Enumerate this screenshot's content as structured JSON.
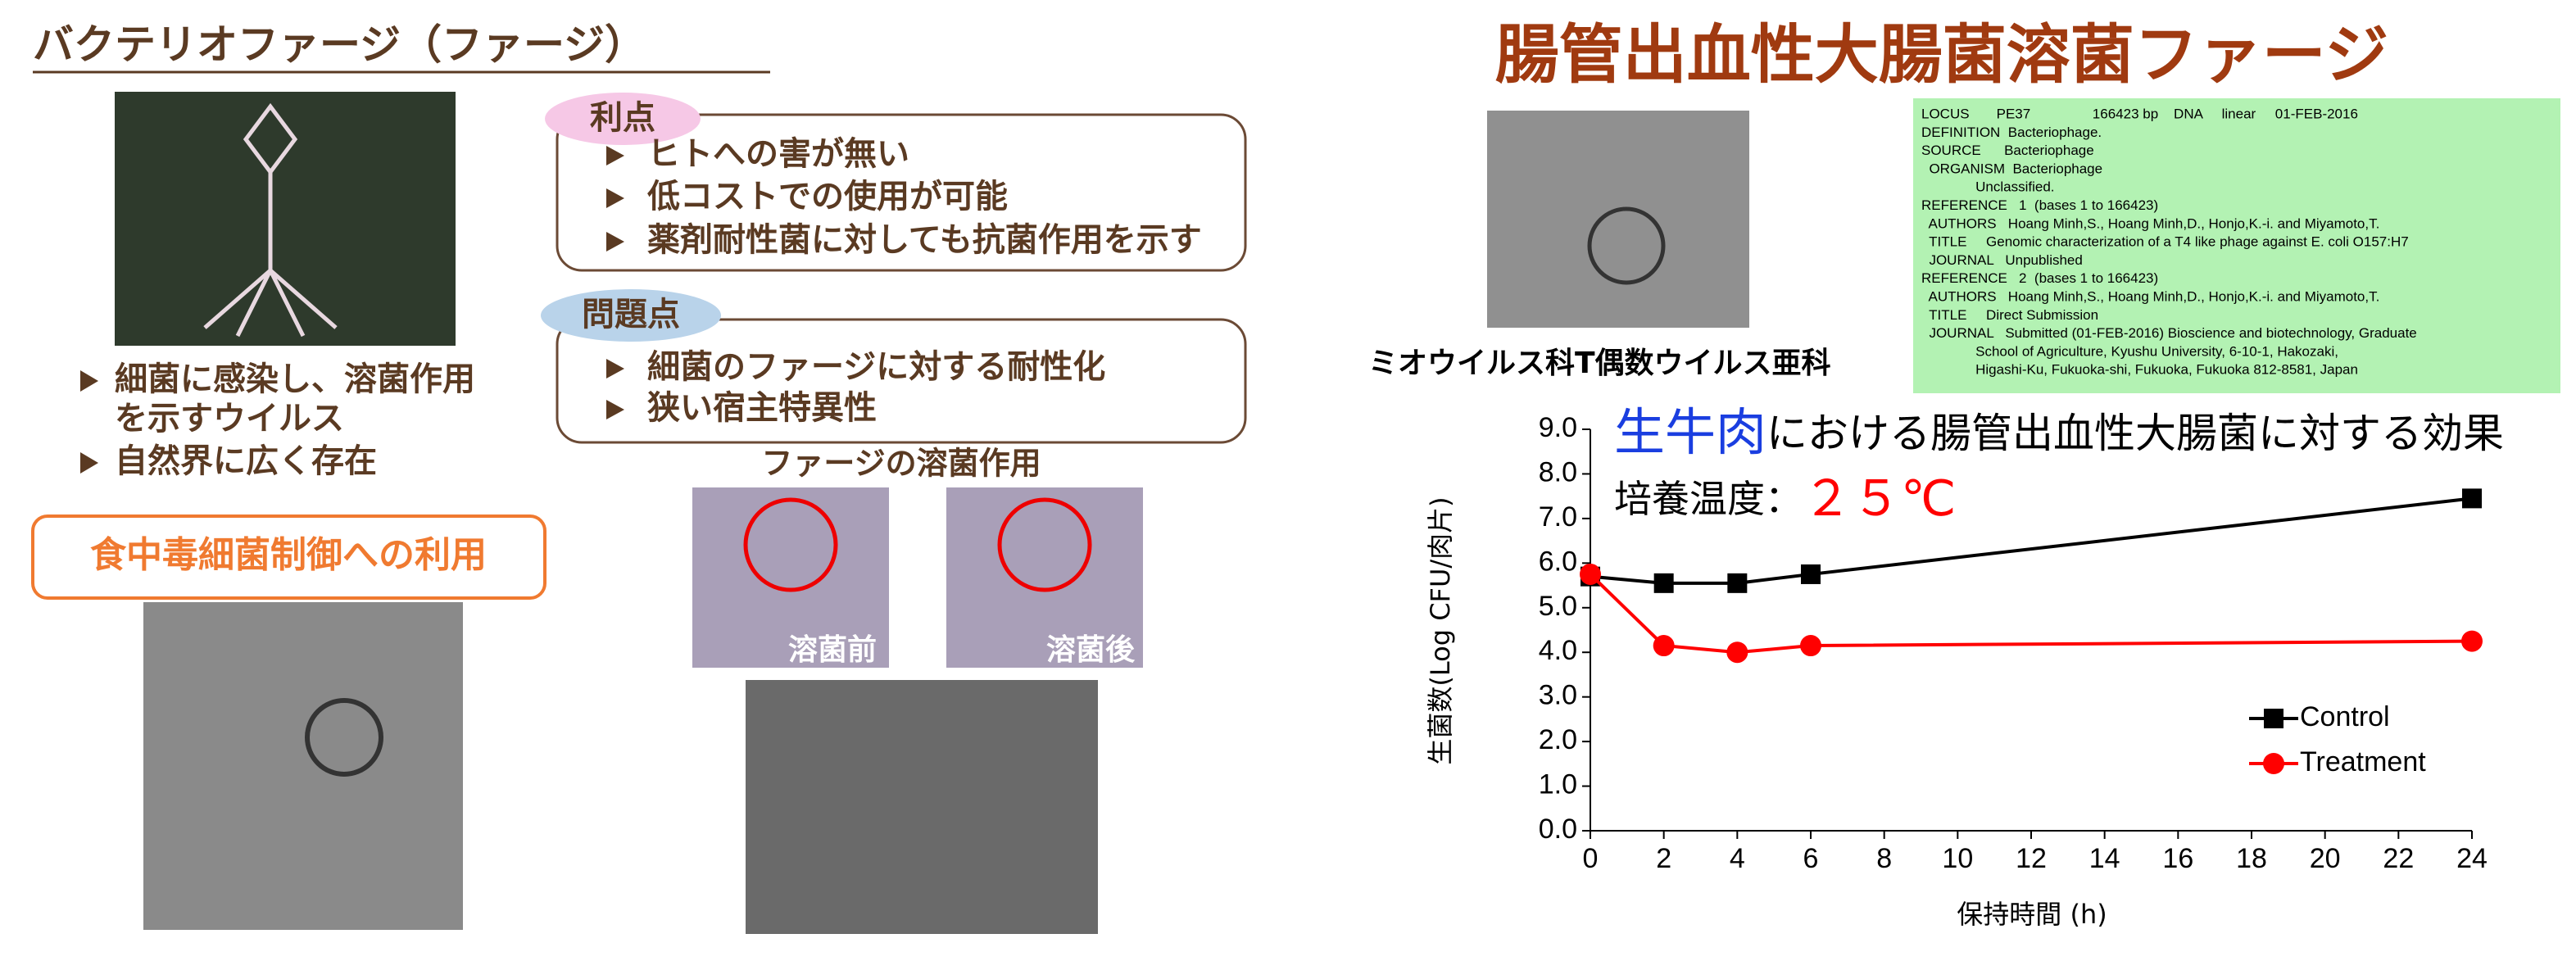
{
  "left": {
    "title": "バクテリオファージ（ファージ）",
    "bullets": [
      "細菌に感染し、溶菌作用",
      "を示すウイルス",
      "自然界に広く存在"
    ],
    "highlight": "食中毒細菌制御への利用",
    "merits": {
      "label": "利点",
      "items": [
        "ヒトへの害が無い",
        "低コストでの使用が可能",
        "薬剤耐性菌に対しても抗菌作用を示す"
      ]
    },
    "problems": {
      "label": "問題点",
      "items": [
        "細菌のファージに対する耐性化",
        "狭い宿主特異性"
      ]
    },
    "lysis": {
      "title": "ファージの溶菌作用",
      "before": "溶菌前",
      "after": "溶菌後"
    }
  },
  "right": {
    "title": "腸管出血性大腸菌溶菌ファージ",
    "caption": "ミオウイルス科T偶数ウイルス亜科",
    "genbank": [
      "LOCUS       PE37                166423 bp    DNA     linear     01-FEB-2016",
      "DEFINITION  Bacteriophage.",
      "SOURCE      Bacteriophage",
      "  ORGANISM  Bacteriophage",
      "              Unclassified.",
      "REFERENCE   1  (bases 1 to 166423)",
      "  AUTHORS   Hoang Minh,S., Hoang Minh,D., Honjo,K.-i. and Miyamoto,T.",
      "  TITLE     Genomic characterization of a T4 like phage against E. coli O157:H7",
      "  JOURNAL   Unpublished",
      "REFERENCE   2  (bases 1 to 166423)",
      "  AUTHORS   Hoang Minh,S., Hoang Minh,D., Honjo,K.-i. and Miyamoto,T.",
      "  TITLE     Direct Submission",
      "  JOURNAL   Submitted (01-FEB-2016) Bioscience and biotechnology, Graduate",
      "              School of Agriculture, Kyushu University, 6-10-1, Hakozaki,",
      "              Higashi-Ku, Fukuoka-shi, Fukuoka, Fukuoka 812-8581, Japan"
    ]
  },
  "chart_data": {
    "type": "line",
    "title_highlight": "生牛肉",
    "title": "における腸管出血性大腸菌に対する効果",
    "subtitle": "培養温度：",
    "subtitle_value": "２５℃",
    "x_label": "保持時間 (h)",
    "y_label": "生菌数(Log CFU/肉片)",
    "x": [
      0,
      2,
      4,
      6,
      24
    ],
    "series": [
      {
        "name": "Control",
        "color": "#000000",
        "marker": "square",
        "values": [
          5.7,
          5.55,
          5.55,
          5.75,
          7.45
        ]
      },
      {
        "name": "Treatment",
        "color": "#ff0000",
        "marker": "circle",
        "values": [
          5.75,
          4.15,
          4.0,
          4.15,
          4.25
        ]
      }
    ],
    "xlim": [
      0,
      24
    ],
    "xticks": [
      0,
      2,
      4,
      6,
      8,
      10,
      12,
      14,
      16,
      18,
      20,
      22,
      24
    ],
    "ylim": [
      0,
      9
    ],
    "yticks": [
      {
        "value": 0,
        "label": "0.0"
      },
      {
        "value": 1,
        "label": "1.0"
      },
      {
        "value": 2,
        "label": "2.0"
      },
      {
        "value": 3,
        "label": "3.0"
      },
      {
        "value": 4,
        "label": "4.0"
      },
      {
        "value": 5,
        "label": "5.0"
      },
      {
        "value": 6,
        "label": "6.0"
      },
      {
        "value": 7,
        "label": "7.0"
      },
      {
        "value": 8,
        "label": "8.0"
      },
      {
        "value": 9,
        "label": "9.0"
      }
    ],
    "legend": "right"
  }
}
